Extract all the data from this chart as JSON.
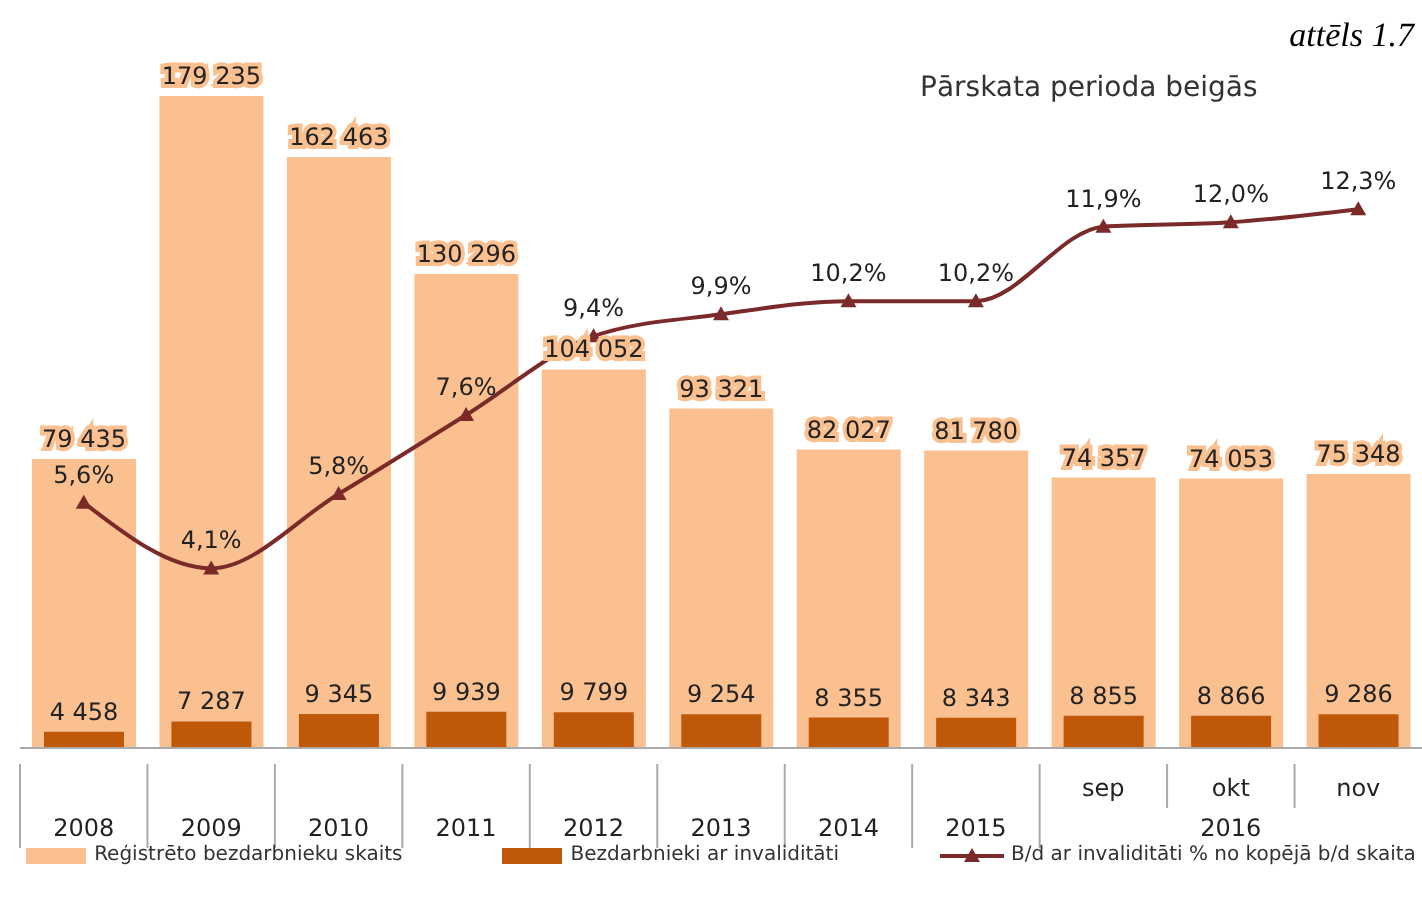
{
  "chart_data": {
    "type": "bar",
    "title": "Pārskata perioda beigās",
    "categories": [
      "2008",
      "2009",
      "2010",
      "2011",
      "2012",
      "2013",
      "2014",
      "2015",
      "sep",
      "okt",
      "nov"
    ],
    "series": [
      {
        "name": "Reģistrēto bezdarbnieku skaits",
        "color": "#fac090",
        "values": [
          79435,
          179235,
          162463,
          130296,
          104052,
          93321,
          82027,
          81780,
          74357,
          74053,
          75348
        ],
        "value_labels": [
          "79 435",
          "179 235",
          "162 463",
          "130 296",
          "104 052",
          "93 321",
          "82 027",
          "81 780",
          "74 357",
          "74 053",
          "75 348"
        ]
      },
      {
        "name": "Bezdarbnieki ar invaliditāti",
        "color": "#c0580a",
        "values": [
          4458,
          7287,
          9345,
          9939,
          9799,
          9254,
          8355,
          8343,
          8855,
          8866,
          9286
        ],
        "value_labels": [
          "4 458",
          "7 287",
          "9 345",
          "9 939",
          "9 799",
          "9 254",
          "8 355",
          "8 343",
          "8 855",
          "8 866",
          "9 286"
        ]
      },
      {
        "name": "B/d ar invaliditāti % no kopējā b/d skaita",
        "type": "line",
        "axis": "y2",
        "color": "#7b2a2a",
        "values": [
          5.6,
          4.1,
          5.8,
          7.6,
          9.4,
          9.9,
          10.2,
          10.2,
          11.9,
          12.0,
          12.3
        ],
        "value_labels": [
          "5,6%",
          "4,1%",
          "5,8%",
          "7,6%",
          "9,4%",
          "9,9%",
          "10,2%",
          "10,2%",
          "11,9%",
          "12,0%",
          "12,3%"
        ]
      }
    ],
    "annotations": [
      "attēls 1.7",
      "2016"
    ],
    "marker": "triangle",
    "line_style": "solid",
    "legend": "bottom",
    "tick_labels": "x",
    "data_labels": false
  }
}
